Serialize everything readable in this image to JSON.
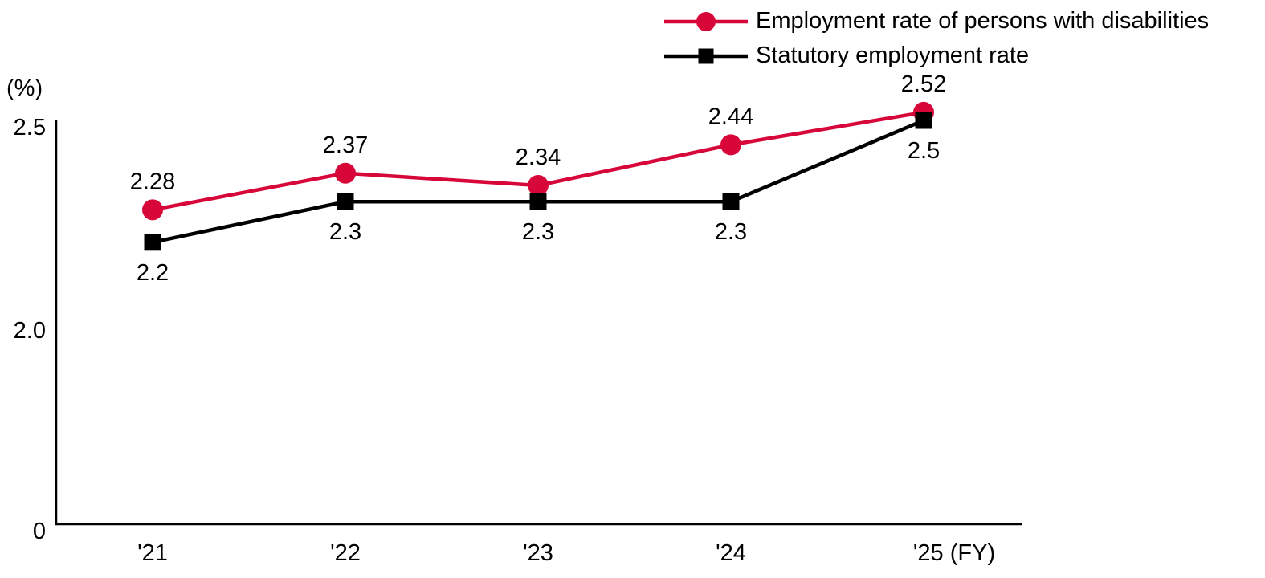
{
  "chart_data": {
    "type": "line",
    "unit_label": "(%)",
    "categories": [
      "'21",
      "'22",
      "'23",
      "'24",
      "'25 (FY)"
    ],
    "series": [
      {
        "name": "Employment rate of persons with disabilities",
        "color": "#d7073a",
        "marker": "circle",
        "label_position": "above",
        "values": [
          2.28,
          2.37,
          2.34,
          2.44,
          2.52
        ]
      },
      {
        "name": "Statutory employment rate",
        "color": "#000000",
        "marker": "square",
        "label_position": "below",
        "values": [
          2.2,
          2.3,
          2.3,
          2.3,
          2.5
        ]
      }
    ],
    "y_ticks": [
      {
        "value": 2.5,
        "label": "2.5"
      },
      {
        "value": 2.0,
        "label": "2.0"
      },
      {
        "value": 0,
        "label": "0"
      }
    ],
    "ylim": [
      0,
      2.5
    ],
    "y_axis_break": "between 0 and 2.0",
    "grid": false,
    "legend_position": "top-right"
  }
}
